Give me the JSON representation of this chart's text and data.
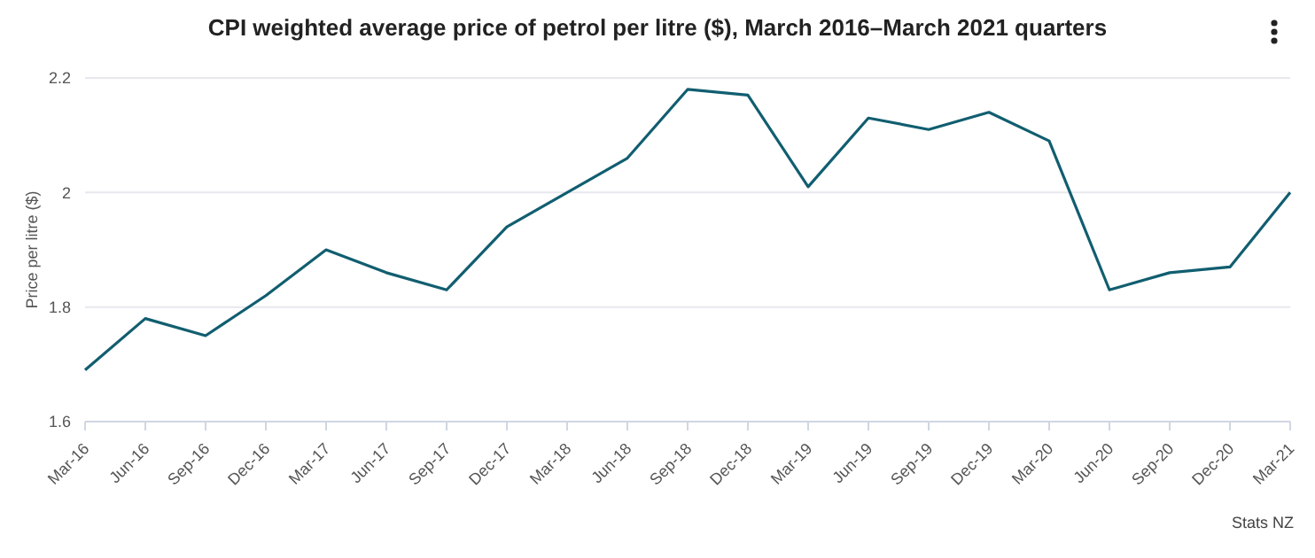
{
  "chart_data": {
    "type": "line",
    "title": "CPI weighted average price of petrol per litre ($), March 2016–March 2021 quarters",
    "ylabel": "Price per litre ($)",
    "categories": [
      "Mar-16",
      "Jun-16",
      "Sep-16",
      "Dec-16",
      "Mar-17",
      "Jun-17",
      "Sep-17",
      "Dec-17",
      "Mar-18",
      "Jun-18",
      "Sep-18",
      "Dec-18",
      "Mar-19",
      "Jun-19",
      "Sep-19",
      "Dec-19",
      "Mar-20",
      "Jun-20",
      "Sep-20",
      "Dec-20",
      "Mar-21"
    ],
    "series": [
      {
        "color": "#115e70",
        "values": [
          1.69,
          1.78,
          1.75,
          1.82,
          1.9,
          1.86,
          1.83,
          1.94,
          2.0,
          2.06,
          2.18,
          2.17,
          2.01,
          2.13,
          2.11,
          2.14,
          2.09,
          1.83,
          1.86,
          1.87,
          2.0
        ]
      }
    ],
    "ylim": [
      1.6,
      2.2
    ],
    "yticks": [
      1.6,
      1.8,
      2,
      2.2
    ],
    "grid": "y",
    "legend": false,
    "marker": "none",
    "line_style": "solid",
    "annotations": [
      "Stats NZ"
    ]
  }
}
